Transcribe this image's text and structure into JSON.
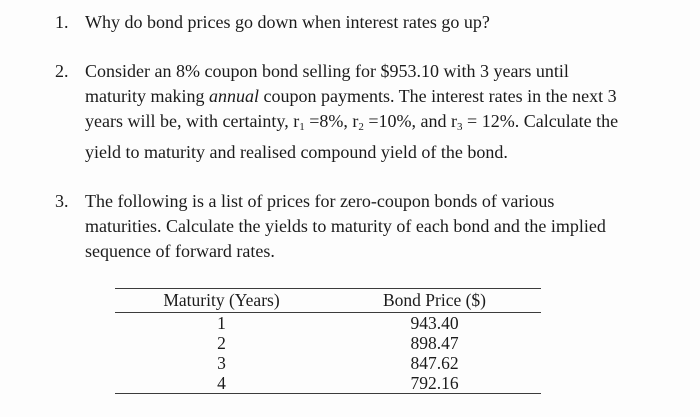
{
  "page": {
    "background_color": "#fdfdfd",
    "text_color": "#1b1b1b",
    "rule_color": "#3c3c3c"
  },
  "questions": [
    {
      "number": "1.",
      "lines": [
        [
          {
            "t": "Why do bond prices go down when interest rates go up?"
          }
        ]
      ]
    },
    {
      "number": "2.",
      "lines": [
        [
          {
            "t": "Consider an 8% coupon bond selling for $953.10 with 3 years until"
          }
        ],
        [
          {
            "t": "maturity making "
          },
          {
            "t": "annual",
            "style": "italic"
          },
          {
            "t": " coupon payments. The interest rates in the next 3"
          }
        ],
        [
          {
            "t": "years will be, with certainty, r"
          },
          {
            "t": "1",
            "style": "sub"
          },
          {
            "t": " =8%, r"
          },
          {
            "t": "2",
            "style": "sub"
          },
          {
            "t": " =10%, and r"
          },
          {
            "t": "3",
            "style": "sub"
          },
          {
            "t": " = 12%. Calculate the"
          }
        ],
        [
          {
            "t": "yield to maturity and realised compound yield of the bond."
          }
        ]
      ]
    },
    {
      "number": "3.",
      "lines": [
        [
          {
            "t": "The following is a list of prices for zero-coupon bonds of various"
          }
        ],
        [
          {
            "t": "maturities. Calculate the yields to maturity of each bond and the implied"
          }
        ],
        [
          {
            "t": "sequence of forward rates."
          }
        ]
      ]
    }
  ],
  "table": {
    "headers": [
      "Maturity (Years)",
      "Bond Price ($)"
    ],
    "rows": [
      [
        "1",
        "943.40"
      ],
      [
        "2",
        "898.47"
      ],
      [
        "3",
        "847.62"
      ],
      [
        "4",
        "792.16"
      ]
    ]
  }
}
